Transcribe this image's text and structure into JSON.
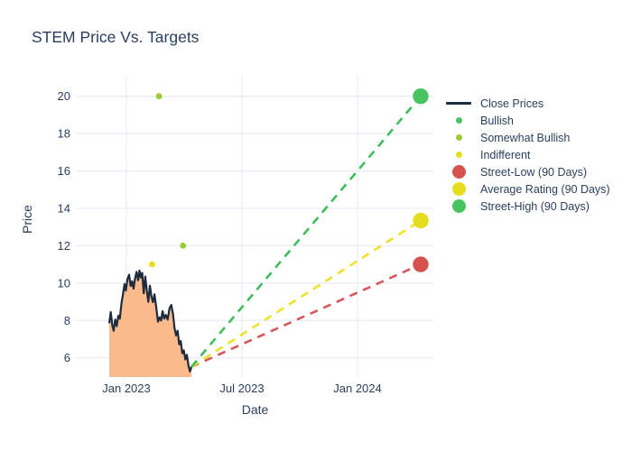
{
  "chart_data": {
    "type": "line",
    "title": "STEM Price Vs. Targets",
    "xlabel": "Date",
    "ylabel": "Price",
    "y_ticks": [
      6,
      8,
      10,
      12,
      14,
      16,
      18,
      20
    ],
    "x_ticks": [
      {
        "m": 0,
        "label": "Jan 2023"
      },
      {
        "m": 6,
        "label": "Jul 2023"
      },
      {
        "m": 12,
        "label": "Jan 2024"
      }
    ],
    "x_range_months_from_jan2023": [
      -2.6,
      15.9
    ],
    "y_range": [
      4.95,
      21.05
    ],
    "grid": true,
    "legend_position": "right",
    "colors": {
      "grid": "#e9eef6",
      "text": "#2a3f5f",
      "close_line": "#1c2b3e",
      "area_fill": "#fbba8c",
      "bullish_green": "#47c35f",
      "somewhat_bullish_green": "#98cc32",
      "indifferent_yellow": "#e5de20",
      "street_low_red": "#d5524f"
    },
    "close_prices": {
      "name": "Close Prices",
      "color": "#1c2b3e",
      "fill": "#fbba8c",
      "date_range": "Dec 2022 - Apr 2023",
      "points": [
        [
          -0.89,
          7.85
        ],
        [
          -0.81,
          8.45
        ],
        [
          -0.73,
          7.75
        ],
        [
          -0.66,
          7.45
        ],
        [
          -0.58,
          8.05
        ],
        [
          -0.5,
          7.7
        ],
        [
          -0.42,
          8.25
        ],
        [
          -0.34,
          8.1
        ],
        [
          -0.26,
          8.9
        ],
        [
          -0.18,
          9.4
        ],
        [
          -0.1,
          9.95
        ],
        [
          -0.03,
          9.6
        ],
        [
          0.05,
          10.2
        ],
        [
          0.14,
          10.45
        ],
        [
          0.22,
          9.85
        ],
        [
          0.3,
          10.1
        ],
        [
          0.37,
          9.7
        ],
        [
          0.45,
          10.25
        ],
        [
          0.53,
          10.6
        ],
        [
          0.61,
          10.15
        ],
        [
          0.68,
          10.67
        ],
        [
          0.75,
          10.3
        ],
        [
          0.82,
          10.55
        ],
        [
          0.9,
          9.45
        ],
        [
          0.98,
          10.35
        ],
        [
          1.06,
          9.6
        ],
        [
          1.14,
          9.0
        ],
        [
          1.22,
          9.86
        ],
        [
          1.3,
          9.3
        ],
        [
          1.38,
          8.98
        ],
        [
          1.46,
          9.4
        ],
        [
          1.56,
          8.6
        ],
        [
          1.64,
          7.93
        ],
        [
          1.72,
          8.17
        ],
        [
          1.8,
          8.0
        ],
        [
          1.88,
          8.5
        ],
        [
          1.96,
          8.1
        ],
        [
          2.05,
          8.3
        ],
        [
          2.14,
          8.05
        ],
        [
          2.24,
          8.66
        ],
        [
          2.33,
          8.83
        ],
        [
          2.42,
          8.35
        ],
        [
          2.5,
          7.6
        ],
        [
          2.58,
          7.2
        ],
        [
          2.66,
          7.45
        ],
        [
          2.74,
          6.72
        ],
        [
          2.82,
          6.9
        ],
        [
          2.9,
          6.24
        ],
        [
          2.98,
          6.4
        ],
        [
          3.06,
          5.92
        ],
        [
          3.14,
          6.16
        ],
        [
          3.22,
          5.6
        ],
        [
          3.3,
          5.27
        ],
        [
          3.38,
          5.52
        ]
      ]
    },
    "ratings": [
      {
        "label": "Indifferent",
        "m": 1.33,
        "price": 11,
        "color": "#e5de20"
      },
      {
        "label": "Somewhat Bullish",
        "m": 1.69,
        "price": 20,
        "color": "#98cc32"
      },
      {
        "label": "Somewhat Bullish",
        "m": 2.94,
        "price": 12,
        "color": "#98cc32"
      }
    ],
    "targets": {
      "start": {
        "m": 3.38,
        "price": 5.52
      },
      "end_m": 15.28,
      "end_label": "Apr 2024",
      "lines": [
        {
          "label": "Street-Low (90 Days)",
          "value": 11,
          "color": "#d5524f",
          "dash": "#d8575c"
        },
        {
          "label": "Average Rating (90 Days)",
          "value": 13.35,
          "color": "#e5de20",
          "dash": "#ede32a"
        },
        {
          "label": "Street-High (90 Days)",
          "value": 20,
          "color": "#47c35f",
          "dash": "#3fbc5c"
        }
      ]
    }
  },
  "legend": {
    "items": [
      {
        "label": "Close Prices",
        "type": "line",
        "color": "#1c2b3e"
      },
      {
        "label": "Bullish",
        "type": "dot-small",
        "color": "#47c35f"
      },
      {
        "label": "Somewhat Bullish",
        "type": "dot-small",
        "color": "#98cc32"
      },
      {
        "label": "Indifferent",
        "type": "dot-small",
        "color": "#e5de20"
      },
      {
        "label": "Street-Low (90 Days)",
        "type": "dot-large",
        "color": "#d5524f"
      },
      {
        "label": "Average Rating (90 Days)",
        "type": "dot-large",
        "color": "#e5de20"
      },
      {
        "label": "Street-High (90 Days)",
        "type": "dot-large",
        "color": "#47c35f"
      }
    ]
  }
}
